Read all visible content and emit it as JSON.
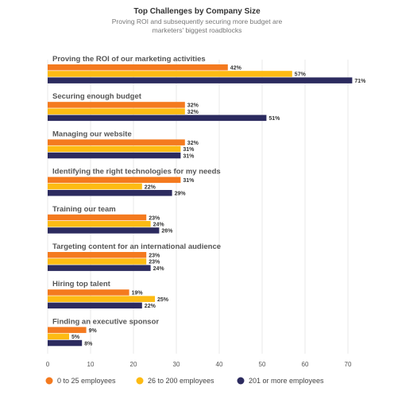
{
  "chart_data": {
    "type": "bar",
    "orientation": "horizontal",
    "title": "Top Challenges by Company Size",
    "subtitle_lines": [
      "Proving ROI and subsequently securing more budget are",
      "marketers' biggest roadblocks"
    ],
    "categories": [
      "Proving the ROI of our marketing activities",
      "Securing enough budget",
      "Managing our website",
      "Identifying the right technologies for my needs",
      "Training our team",
      "Targeting content for an international audience",
      "Hiring top talent",
      "Finding an executive sponsor"
    ],
    "series": [
      {
        "name": "0 to 25 employees",
        "color": "#F47A1F",
        "values": [
          42,
          32,
          32,
          31,
          23,
          23,
          19,
          9
        ]
      },
      {
        "name": "26 to 200 employees",
        "color": "#FDBB13",
        "values": [
          57,
          32,
          31,
          22,
          24,
          23,
          25,
          5
        ]
      },
      {
        "name": "201 or more employees",
        "color": "#2C2B5F",
        "values": [
          71,
          51,
          31,
          29,
          26,
          24,
          22,
          8
        ]
      }
    ],
    "value_suffix": "%",
    "xlim": [
      0,
      70
    ],
    "xticks": [
      0,
      10,
      20,
      30,
      40,
      50,
      60,
      70
    ],
    "grid": true,
    "legend_position": "bottom"
  }
}
